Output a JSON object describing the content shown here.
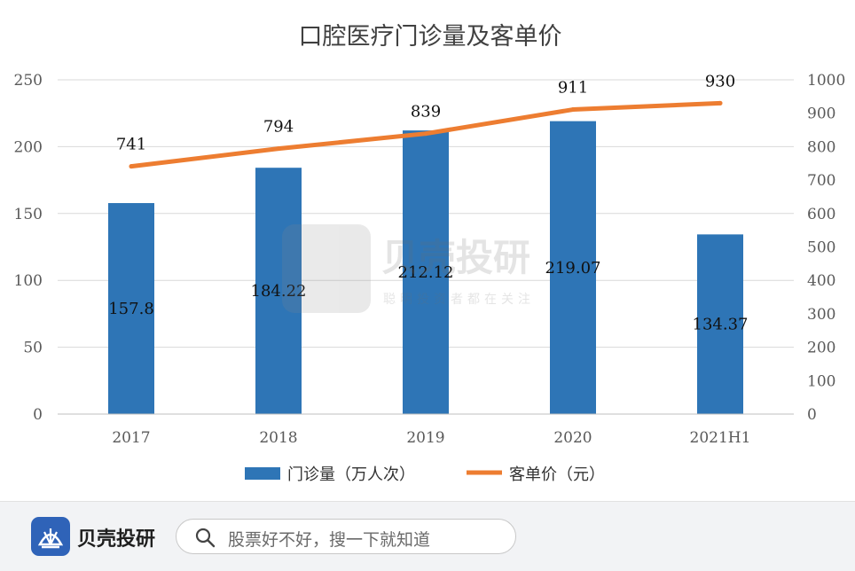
{
  "chart_data": {
    "type": "bar+line",
    "title": "口腔医疗门诊量及客单价",
    "categories": [
      "2017",
      "2018",
      "2019",
      "2020",
      "2021H1"
    ],
    "series": [
      {
        "name": "门诊量（万人次）",
        "type": "bar",
        "axis": "left",
        "color": "#2e75b6",
        "values": [
          157.8,
          184.22,
          212.12,
          219.07,
          134.37
        ],
        "labels": [
          "157.8",
          "184.22",
          "212.12",
          "219.07",
          "134.37"
        ]
      },
      {
        "name": "客单价（元）",
        "type": "line",
        "axis": "right",
        "color": "#ed7d31",
        "values": [
          741,
          794,
          839,
          911,
          930
        ],
        "labels": [
          "741",
          "794",
          "839",
          "911",
          "930"
        ]
      }
    ],
    "y_left": {
      "min": 0,
      "max": 250,
      "ticks": [
        "0",
        "50",
        "100",
        "150",
        "200",
        "250"
      ]
    },
    "y_right": {
      "min": 0,
      "max": 1000,
      "ticks": [
        "0",
        "100",
        "200",
        "300",
        "400",
        "500",
        "600",
        "700",
        "800",
        "900",
        "1000"
      ]
    },
    "grid": true,
    "legend_position": "bottom"
  },
  "watermark": {
    "brand": "贝壳投研",
    "slogan": "聪明投资者都在关注"
  },
  "footer": {
    "app_name": "贝壳投研",
    "search_placeholder": "股票好不好，搜一下就知道",
    "logo_icon": "shell-logo-icon",
    "search_icon": "search-icon"
  }
}
